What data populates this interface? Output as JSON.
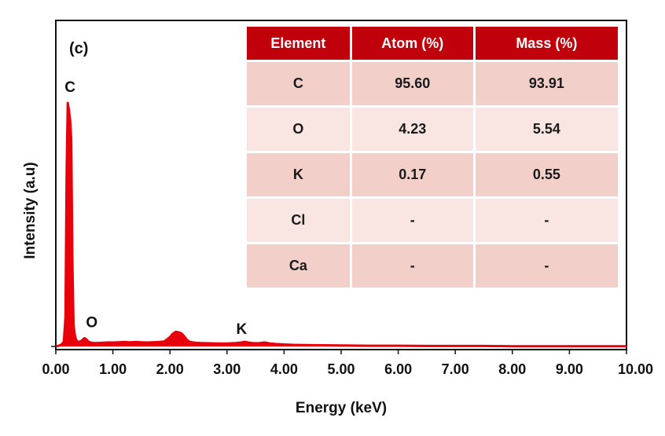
{
  "panel_label": "(c)",
  "chart_data": {
    "type": "line",
    "title": "",
    "xlabel": "Energy (keV)",
    "ylabel": "Intensity (a.u)",
    "xlim": [
      0,
      10
    ],
    "ylim": [
      0,
      100
    ],
    "x_ticks": [
      "0.00",
      "1.00",
      "2.00",
      "3.00",
      "4.00",
      "5.00",
      "6.00",
      "7.00",
      "8.00",
      "9.00",
      "10.00"
    ],
    "grid": false,
    "line_color": "#e8000b",
    "series": [
      {
        "x": [
          0.0,
          0.05,
          0.1,
          0.14,
          0.17,
          0.19,
          0.21,
          0.23,
          0.25,
          0.27,
          0.29,
          0.31,
          0.33,
          0.35,
          0.37,
          0.4,
          0.45,
          0.5,
          0.53,
          0.57,
          0.62,
          0.7,
          0.8,
          0.9,
          1.0,
          1.1,
          1.2,
          1.3,
          1.4,
          1.5,
          1.6,
          1.7,
          1.8,
          1.9,
          2.0,
          2.05,
          2.1,
          2.15,
          2.2,
          2.25,
          2.3,
          2.35,
          2.45,
          2.55,
          2.7,
          2.85,
          3.0,
          3.15,
          3.25,
          3.31,
          3.37,
          3.45,
          3.55,
          3.65,
          3.7,
          3.75,
          3.85,
          4.0,
          4.2,
          4.5,
          5.0,
          5.5,
          6.0,
          6.5,
          7.0,
          7.5,
          8.0,
          8.5,
          9.0,
          9.5,
          10.0
        ],
        "y": [
          0,
          0.3,
          0.8,
          2,
          12,
          72,
          100,
          97,
          93,
          85,
          35,
          9,
          5,
          3,
          2.2,
          1.8,
          2.3,
          3.4,
          3.0,
          2.0,
          1.5,
          1.4,
          1.5,
          1.6,
          1.6,
          1.7,
          1.8,
          1.7,
          1.8,
          1.7,
          1.6,
          1.7,
          1.8,
          2.0,
          3.8,
          5.2,
          6.0,
          5.8,
          5.4,
          4.2,
          2.6,
          1.8,
          1.5,
          1.4,
          1.3,
          1.2,
          1.2,
          1.4,
          1.6,
          1.9,
          1.6,
          1.4,
          1.3,
          1.6,
          1.5,
          1.2,
          1.0,
          0.8,
          0.6,
          0.5,
          0.4,
          0.3,
          0.3,
          0.2,
          0.2,
          0.2,
          0.1,
          0.1,
          0.1,
          0.1,
          0.1
        ]
      }
    ],
    "annotations": [
      {
        "text": "C",
        "x": 0.25,
        "y": 100
      },
      {
        "text": "O",
        "x": 0.52,
        "y": 3.4
      },
      {
        "text": "K",
        "x": 3.31,
        "y": 1.9
      }
    ]
  },
  "table": {
    "headers": [
      "Element",
      "Atom (%)",
      "Mass (%)"
    ],
    "rows": [
      [
        "C",
        "95.60",
        "93.91"
      ],
      [
        "O",
        "4.23",
        "5.54"
      ],
      [
        "K",
        "0.17",
        "0.55"
      ],
      [
        "Cl",
        "-",
        "-"
      ],
      [
        "Ca",
        "-",
        "-"
      ]
    ]
  }
}
